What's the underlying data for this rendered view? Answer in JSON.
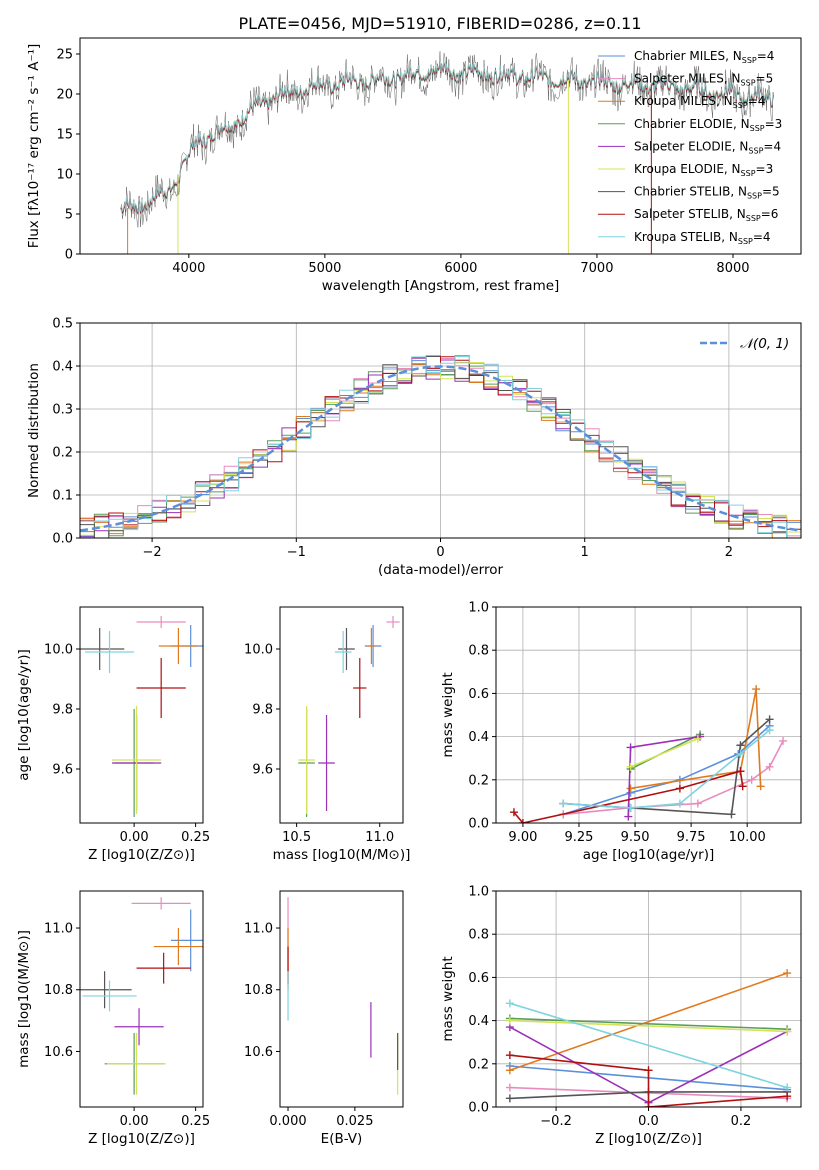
{
  "title": "PLATE=0456, MJD=51910, FIBERID=0286, z=0.11",
  "series": [
    {
      "name": "Chabrier MILES, N",
      "sub": "SSP",
      "tail": "=4",
      "color": "#5b8fd9"
    },
    {
      "name": "Salpeter MILES, N",
      "sub": "SSP",
      "tail": "=5",
      "color": "#e88cbf"
    },
    {
      "name": "Kroupa MILES, N",
      "sub": "SSP",
      "tail": "=4",
      "color": "#e07a1f"
    },
    {
      "name": "Chabrier ELODIE, N",
      "sub": "SSP",
      "tail": "=3",
      "color": "#5a9e5a"
    },
    {
      "name": "Salpeter ELODIE, N",
      "sub": "SSP",
      "tail": "=4",
      "color": "#9b30b8"
    },
    {
      "name": "Kroupa ELODIE, N",
      "sub": "SSP",
      "tail": "=3",
      "color": "#d4e35a"
    },
    {
      "name": "Chabrier STELIB, N",
      "sub": "SSP",
      "tail": "=5",
      "color": "#555555"
    },
    {
      "name": "Salpeter STELIB, N",
      "sub": "SSP",
      "tail": "=6",
      "color": "#b01010"
    },
    {
      "name": "Kroupa STELIB, N",
      "sub": "SSP",
      "tail": "=4",
      "color": "#7fd3e0"
    }
  ],
  "chart_data": [
    {
      "id": "spectrum",
      "type": "line",
      "xlabel": "wavelength [Angstrom, rest frame]",
      "ylabel": "Flux [fλ10⁻¹⁷ erg cm⁻² s⁻¹ A⁻¹]",
      "xlim": [
        3200,
        8500
      ],
      "ylim": [
        0,
        27
      ],
      "xticks": [
        4000,
        5000,
        6000,
        7000,
        8000
      ],
      "yticks": [
        0,
        5,
        10,
        15,
        20,
        25
      ],
      "continuum": [
        [
          3500,
          5.5
        ],
        [
          3700,
          6.5
        ],
        [
          3850,
          8
        ],
        [
          3950,
          10.5
        ],
        [
          4050,
          14
        ],
        [
          4300,
          16
        ],
        [
          4600,
          19.5
        ],
        [
          4900,
          21
        ],
        [
          5200,
          21.5
        ],
        [
          5500,
          22
        ],
        [
          5800,
          23
        ],
        [
          6200,
          22.5
        ],
        [
          6600,
          22
        ],
        [
          7000,
          21.5
        ],
        [
          7500,
          21
        ],
        [
          8000,
          20
        ],
        [
          8300,
          19.5
        ]
      ],
      "spikes": [
        3550,
        3920,
        6790,
        7400
      ]
    },
    {
      "id": "residuals",
      "type": "step",
      "xlabel": "(data-model)/error",
      "ylabel": "Normed distribution",
      "xlim": [
        -2.5,
        2.5
      ],
      "ylim": [
        0,
        0.5
      ],
      "xticks": [
        -2,
        -1,
        0,
        1,
        2
      ],
      "yticks": [
        0.0,
        0.1,
        0.2,
        0.3,
        0.4,
        0.5
      ],
      "grid": true,
      "reference_label": "𝒩(0, 1)",
      "reference": {
        "mean": 0,
        "sigma": 1
      },
      "bin_width": 0.1
    },
    {
      "id": "age-vs-Z",
      "type": "errorbar",
      "xlabel": "Z [log10(Z/Z⊙)]",
      "ylabel": "age  [log10(age/yr)]",
      "xlim": [
        -0.22,
        0.28
      ],
      "ylim": [
        9.42,
        10.14
      ],
      "xticks": [
        0.0,
        0.25
      ],
      "yticks": [
        9.6,
        9.8,
        10.0
      ],
      "points": [
        {
          "s": 0,
          "x": 0.23,
          "y": 10.01,
          "xe": 0.08,
          "ye": 0.07
        },
        {
          "s": 1,
          "x": 0.11,
          "y": 10.09,
          "xe": 0.1,
          "ye": 0.02
        },
        {
          "s": 2,
          "x": 0.18,
          "y": 10.01,
          "xe": 0.08,
          "ye": 0.06
        },
        {
          "s": 3,
          "x": 0.0,
          "y": 9.62,
          "xe": 0.08,
          "ye": 0.18
        },
        {
          "s": 4,
          "x": 0.01,
          "y": 9.62,
          "xe": 0.1,
          "ye": 0.16
        },
        {
          "s": 5,
          "x": 0.01,
          "y": 9.63,
          "xe": 0.1,
          "ye": 0.18
        },
        {
          "s": 6,
          "x": -0.14,
          "y": 10.0,
          "xe": 0.1,
          "ye": 0.07
        },
        {
          "s": 7,
          "x": 0.11,
          "y": 9.87,
          "xe": 0.1,
          "ye": 0.1
        },
        {
          "s": 8,
          "x": -0.1,
          "y": 9.99,
          "xe": 0.1,
          "ye": 0.07
        }
      ]
    },
    {
      "id": "age-vs-mass",
      "type": "errorbar",
      "xlabel": "mass [log10(M/M⊙)]",
      "ylabel": "",
      "xlim": [
        10.4,
        11.14
      ],
      "ylim": [
        9.42,
        10.14
      ],
      "xticks": [
        10.5,
        11.0
      ],
      "yticks": [
        9.6,
        9.8,
        10.0
      ],
      "points": [
        {
          "s": 0,
          "x": 10.96,
          "y": 10.01,
          "xe": 0.05,
          "ye": 0.07
        },
        {
          "s": 1,
          "x": 11.08,
          "y": 10.09,
          "xe": 0.04,
          "ye": 0.02
        },
        {
          "s": 2,
          "x": 10.95,
          "y": 10.01,
          "xe": 0.03,
          "ye": 0.06
        },
        {
          "s": 3,
          "x": 10.56,
          "y": 9.62,
          "xe": 0.05,
          "ye": 0.18
        },
        {
          "s": 4,
          "x": 10.68,
          "y": 9.62,
          "xe": 0.05,
          "ye": 0.16
        },
        {
          "s": 5,
          "x": 10.56,
          "y": 9.63,
          "xe": 0.05,
          "ye": 0.18
        },
        {
          "s": 6,
          "x": 10.8,
          "y": 10.0,
          "xe": 0.05,
          "ye": 0.07
        },
        {
          "s": 7,
          "x": 10.88,
          "y": 9.87,
          "xe": 0.04,
          "ye": 0.1
        },
        {
          "s": 8,
          "x": 10.78,
          "y": 9.99,
          "xe": 0.05,
          "ye": 0.07
        }
      ]
    },
    {
      "id": "weight-vs-age",
      "type": "line",
      "xlabel": "age  [log10(age/yr)]",
      "ylabel": "mass weight",
      "xlim": [
        8.88,
        10.24
      ],
      "ylim": [
        0,
        1
      ],
      "xticks": [
        9.0,
        9.25,
        9.5,
        9.75,
        10.0
      ],
      "yticks": [
        0.0,
        0.2,
        0.4,
        0.6,
        0.8,
        1.0
      ],
      "grid": true,
      "lines": [
        {
          "s": 0,
          "pts": [
            [
              9.18,
              0.04
            ],
            [
              9.48,
              0.14
            ],
            [
              9.7,
              0.2
            ],
            [
              9.96,
              0.32
            ],
            [
              10.1,
              0.45
            ]
          ]
        },
        {
          "s": 1,
          "pts": [
            [
              9.18,
              0.04
            ],
            [
              9.47,
              0.07
            ],
            [
              9.78,
              0.09
            ],
            [
              10.02,
              0.2
            ],
            [
              10.1,
              0.26
            ],
            [
              10.16,
              0.38
            ]
          ]
        },
        {
          "s": 2,
          "pts": [
            [
              9.48,
              0.16
            ],
            [
              9.97,
              0.24
            ],
            [
              10.04,
              0.62
            ],
            [
              10.06,
              0.17
            ]
          ]
        },
        {
          "s": 3,
          "pts": [
            [
              9.48,
              0.25
            ],
            [
              9.79,
              0.41
            ]
          ]
        },
        {
          "s": 4,
          "pts": [
            [
              9.47,
              0.03
            ],
            [
              9.48,
              0.35
            ],
            [
              9.79,
              0.4
            ]
          ]
        },
        {
          "s": 5,
          "pts": [
            [
              9.48,
              0.26
            ],
            [
              9.78,
              0.39
            ]
          ]
        },
        {
          "s": 6,
          "pts": [
            [
              9.18,
              0.09
            ],
            [
              9.48,
              0.07
            ],
            [
              9.93,
              0.04
            ],
            [
              9.97,
              0.36
            ],
            [
              10.1,
              0.48
            ]
          ]
        },
        {
          "s": 7,
          "pts": [
            [
              8.96,
              0.05
            ],
            [
              9.0,
              0.0
            ],
            [
              9.7,
              0.16
            ],
            [
              9.97,
              0.24
            ],
            [
              9.98,
              0.17
            ]
          ]
        },
        {
          "s": 8,
          "pts": [
            [
              9.18,
              0.09
            ],
            [
              9.48,
              0.07
            ],
            [
              9.7,
              0.09
            ],
            [
              9.97,
              0.32
            ],
            [
              10.1,
              0.43
            ]
          ]
        }
      ]
    },
    {
      "id": "mass-vs-Z",
      "type": "errorbar",
      "xlabel": "Z [log10(Z/Z⊙)]",
      "ylabel": "mass [log10(M/M⊙)]",
      "xlim": [
        -0.22,
        0.28
      ],
      "ylim": [
        10.42,
        11.12
      ],
      "xticks": [
        0.0,
        0.25
      ],
      "yticks": [
        10.6,
        10.8,
        11.0
      ],
      "points": [
        {
          "s": 0,
          "x": 0.23,
          "y": 10.96,
          "xe": 0.08,
          "ye": 0.1
        },
        {
          "s": 1,
          "x": 0.11,
          "y": 11.08,
          "xe": 0.12,
          "ye": 0.02
        },
        {
          "s": 2,
          "x": 0.18,
          "y": 10.94,
          "xe": 0.1,
          "ye": 0.06
        },
        {
          "s": 3,
          "x": 0.0,
          "y": 10.56,
          "xe": 0.12,
          "ye": 0.1
        },
        {
          "s": 4,
          "x": 0.02,
          "y": 10.68,
          "xe": 0.1,
          "ye": 0.06
        },
        {
          "s": 5,
          "x": 0.01,
          "y": 10.56,
          "xe": 0.12,
          "ye": 0.1
        },
        {
          "s": 6,
          "x": -0.12,
          "y": 10.8,
          "xe": 0.11,
          "ye": 0.06
        },
        {
          "s": 7,
          "x": 0.12,
          "y": 10.87,
          "xe": 0.11,
          "ye": 0.05
        },
        {
          "s": 8,
          "x": -0.1,
          "y": 10.78,
          "xe": 0.11,
          "ye": 0.05
        }
      ]
    },
    {
      "id": "mass-vs-ebv",
      "type": "errorbar",
      "xlabel": "E(B-V)",
      "ylabel": "",
      "xlim": [
        -0.003,
        0.043
      ],
      "ylim": [
        10.42,
        11.12
      ],
      "xticks": [
        0.0,
        0.025
      ],
      "yticks": [
        10.6,
        10.8,
        11.0
      ],
      "points": [
        {
          "s": 1,
          "x": 0.0,
          "y": 10.96,
          "xe": 0,
          "ye": 0.14
        },
        {
          "s": 2,
          "x": 0.0,
          "y": 10.9,
          "xe": 0,
          "ye": 0.1
        },
        {
          "s": 7,
          "x": 0.0,
          "y": 10.88,
          "xe": 0,
          "ye": 0.06
        },
        {
          "s": 8,
          "x": 0.0,
          "y": 10.78,
          "xe": 0,
          "ye": 0.08
        },
        {
          "s": 4,
          "x": 0.031,
          "y": 10.67,
          "xe": 0,
          "ye": 0.09
        },
        {
          "s": 5,
          "x": 0.041,
          "y": 10.56,
          "xe": 0,
          "ye": 0.1
        },
        {
          "s": 6,
          "x": 0.041,
          "y": 10.6,
          "xe": 0,
          "ye": 0.06
        }
      ]
    },
    {
      "id": "weight-vs-Z",
      "type": "line",
      "xlabel": "Z [log10(Z/Z⊙)]",
      "ylabel": "mass weight",
      "xlim": [
        -0.33,
        0.33
      ],
      "ylim": [
        0,
        1
      ],
      "xticks": [
        -0.2,
        0.0,
        0.2
      ],
      "yticks": [
        0.0,
        0.2,
        0.4,
        0.6,
        0.8,
        1.0
      ],
      "grid": true,
      "lines": [
        {
          "s": 0,
          "pts": [
            [
              -0.3,
              0.19
            ],
            [
              0.3,
              0.08
            ]
          ]
        },
        {
          "s": 1,
          "pts": [
            [
              -0.3,
              0.09
            ],
            [
              0.3,
              0.04
            ]
          ]
        },
        {
          "s": 2,
          "pts": [
            [
              -0.3,
              0.17
            ],
            [
              0.3,
              0.62
            ]
          ]
        },
        {
          "s": 3,
          "pts": [
            [
              -0.3,
              0.41
            ],
            [
              0.3,
              0.36
            ]
          ]
        },
        {
          "s": 4,
          "pts": [
            [
              -0.3,
              0.37
            ],
            [
              0.0,
              0.02
            ],
            [
              0.3,
              0.35
            ]
          ]
        },
        {
          "s": 5,
          "pts": [
            [
              -0.3,
              0.4
            ],
            [
              0.3,
              0.35
            ]
          ]
        },
        {
          "s": 6,
          "pts": [
            [
              -0.3,
              0.04
            ],
            [
              0.0,
              0.07
            ],
            [
              0.3,
              0.07
            ]
          ]
        },
        {
          "s": 7,
          "pts": [
            [
              -0.3,
              0.24
            ],
            [
              0.0,
              0.17
            ],
            [
              0.0,
              0.0
            ],
            [
              0.3,
              0.05
            ]
          ]
        },
        {
          "s": 8,
          "pts": [
            [
              -0.3,
              0.48
            ],
            [
              0.3,
              0.09
            ]
          ]
        }
      ]
    }
  ]
}
